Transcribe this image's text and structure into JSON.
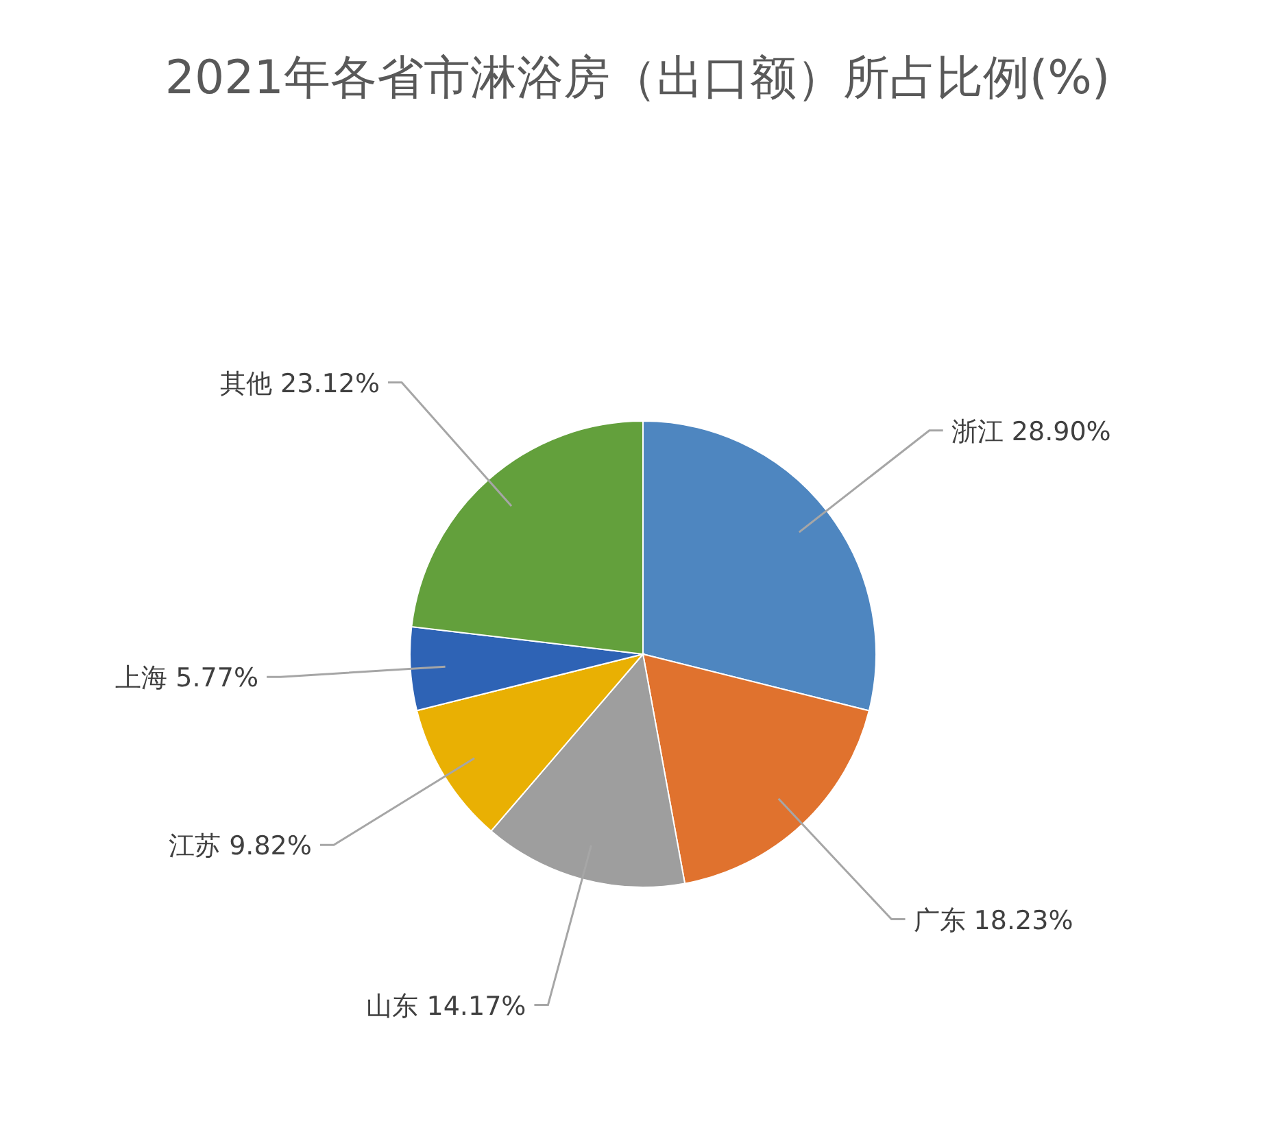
{
  "chart_data": {
    "type": "pie",
    "title": "2021年各省市淋浴房（出口额）所占比例(%)",
    "categories": [
      "浙江",
      "广东",
      "山东",
      "江苏",
      "上海",
      "其他"
    ],
    "values": [
      28.9,
      18.23,
      14.17,
      9.82,
      5.77,
      23.12
    ],
    "colors": [
      "#4e86c0",
      "#e0722e",
      "#9e9e9e",
      "#e9b003",
      "#2e63b5",
      "#63a03c"
    ],
    "value_labels": [
      "28.90%",
      "18.23%",
      "14.17%",
      "9.82%",
      "5.77%",
      "23.12%"
    ]
  }
}
